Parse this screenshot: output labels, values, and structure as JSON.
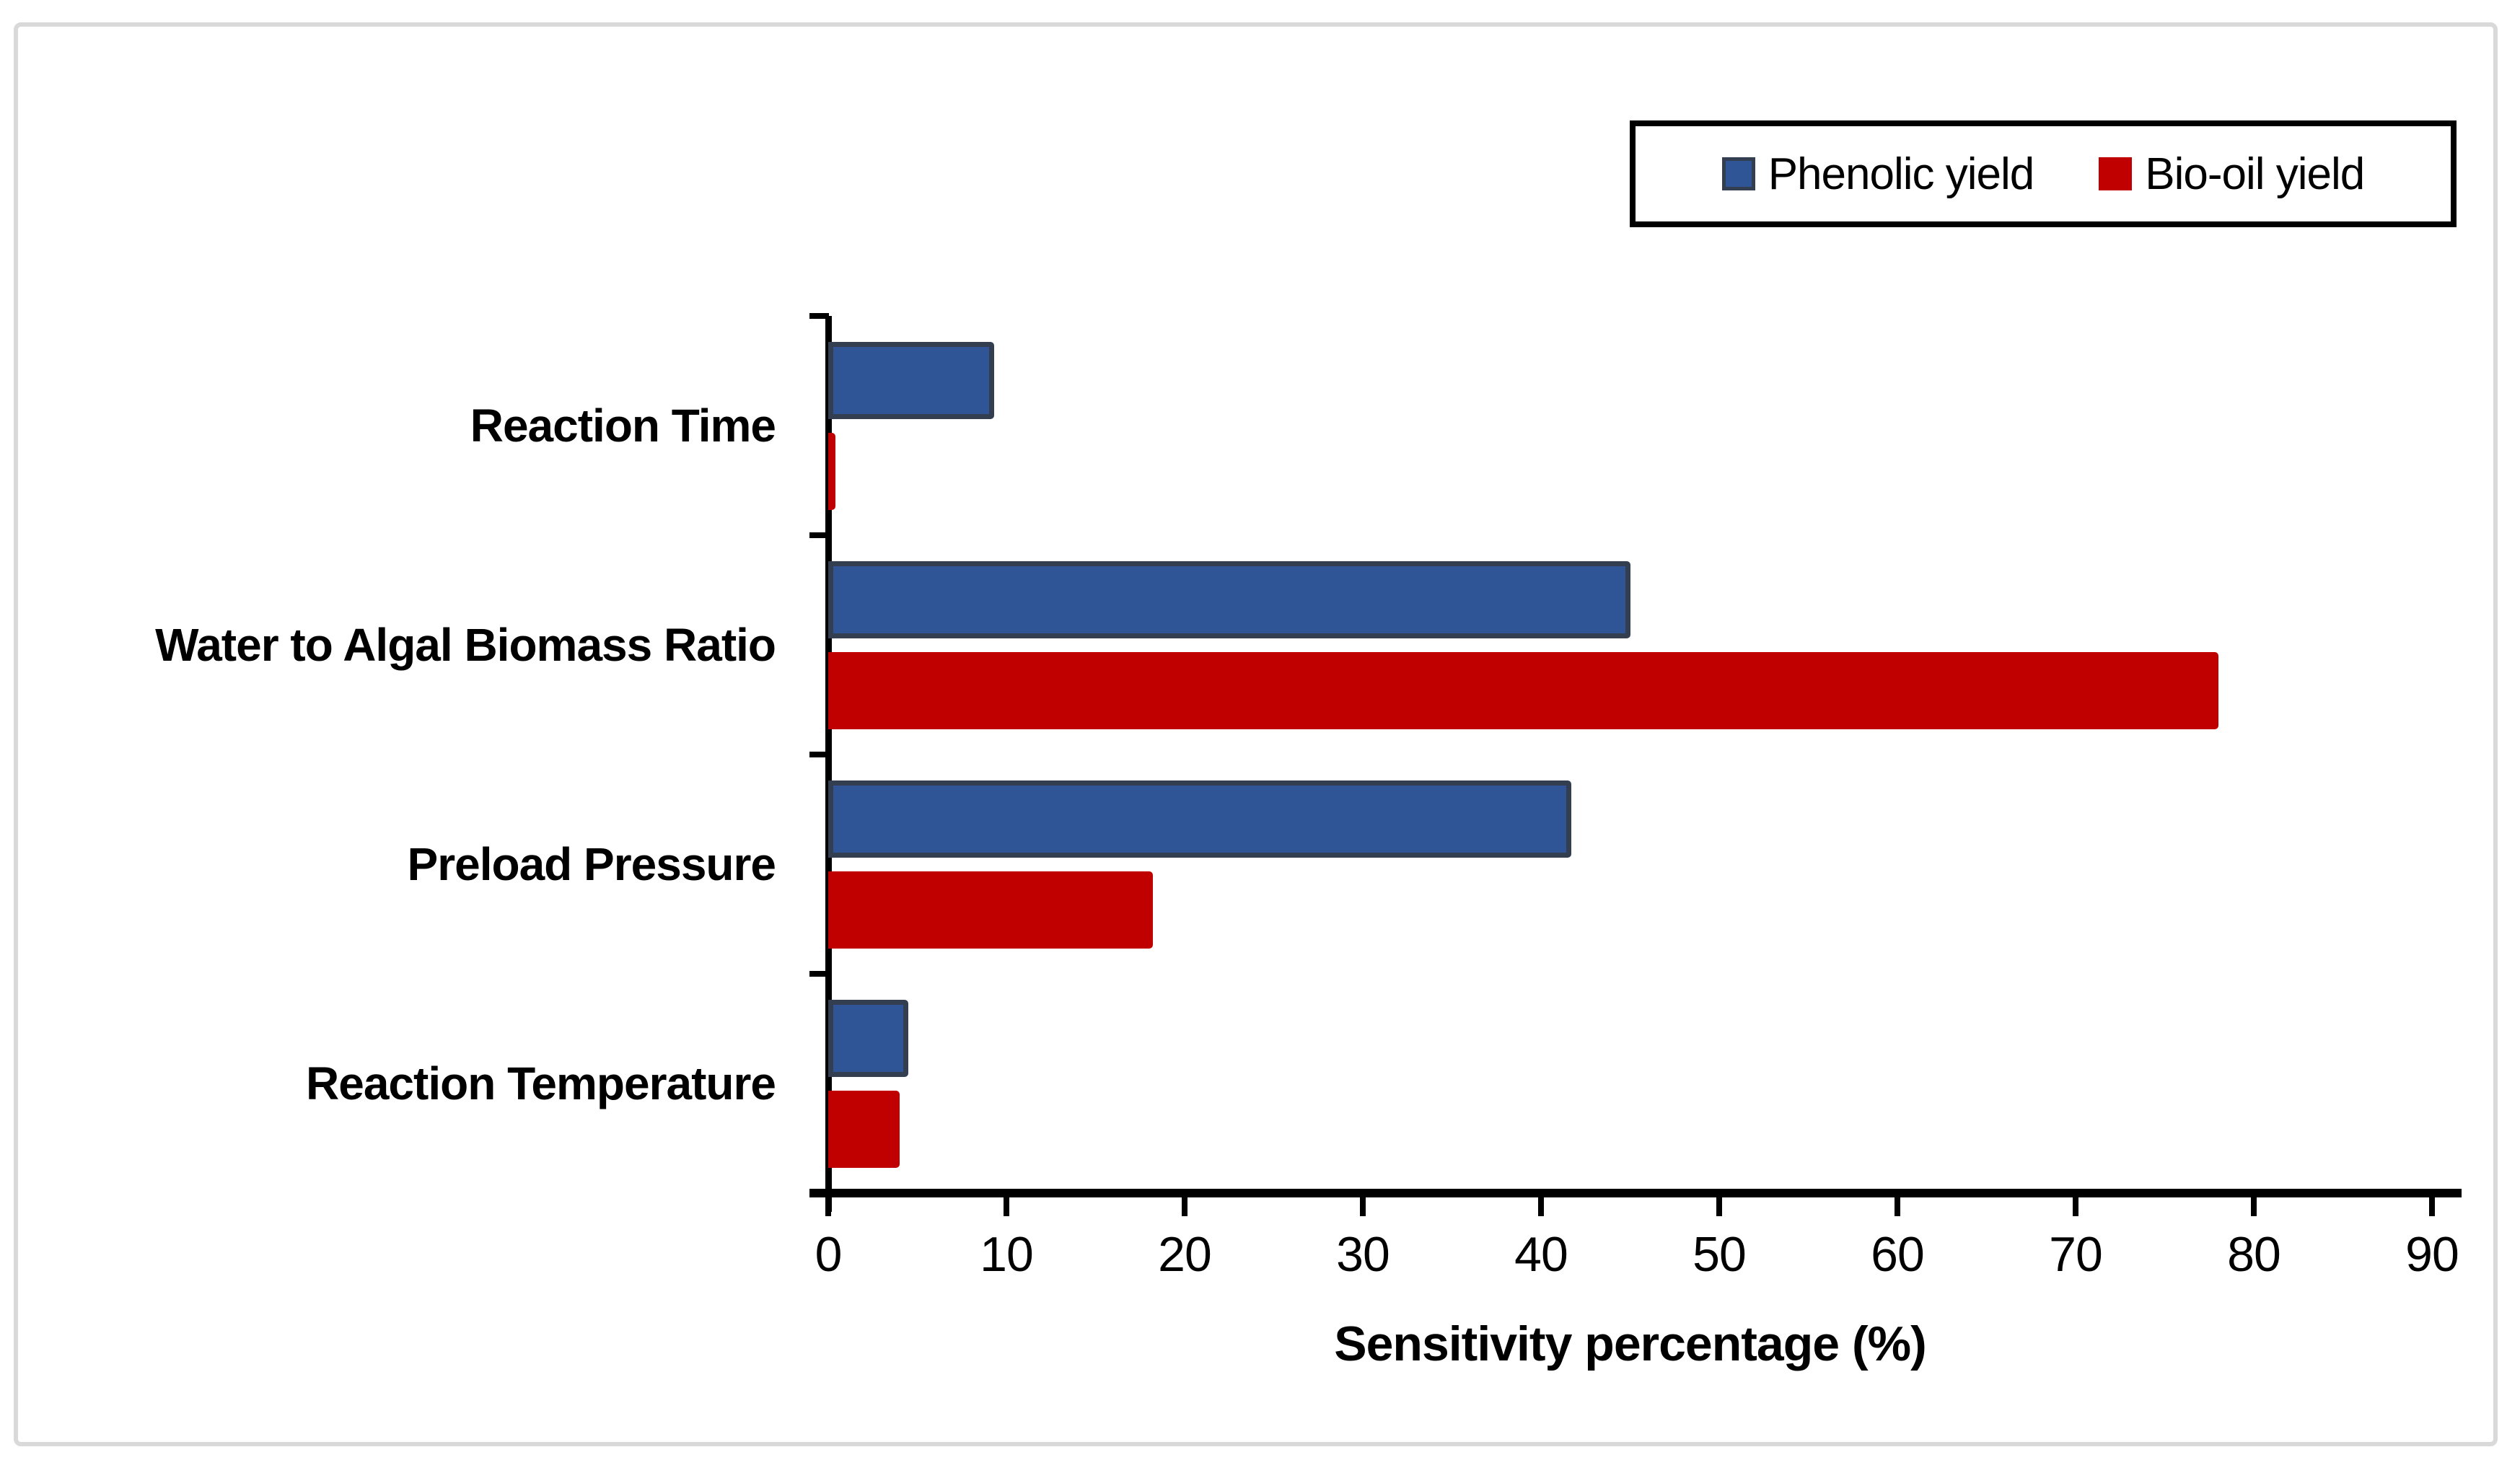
{
  "figure": {
    "background": "#FFFFFF",
    "frame_border_color": "#D9D9D9",
    "axis_color": "#000000"
  },
  "legend": {
    "position": "top-right",
    "border_color": "#000000",
    "items": [
      {
        "label": "Phenolic yield",
        "color": "#2F5597",
        "border_color": "#333F50"
      },
      {
        "label": "Bio-oil yield",
        "color": "#C00000",
        "border_color": "#C00000"
      }
    ]
  },
  "chart_data": {
    "type": "bar",
    "orientation": "horizontal",
    "title": "",
    "xlabel": "Sensitivity percentage (%)",
    "ylabel": "",
    "categories": [
      "Reaction Time",
      "Water to Algal Biomass Ratio",
      "Preload Pressure",
      "Reaction Temperature"
    ],
    "series": [
      {
        "name": "Phenolic yield",
        "color": "#2F5597",
        "border_color": "#333F50",
        "values": [
          9.3,
          45,
          41.7,
          4.5
        ]
      },
      {
        "name": "Bio-oil yield",
        "color": "#C00000",
        "border_color": "#C00000",
        "values": [
          0.4,
          78,
          18.2,
          4.0
        ]
      }
    ],
    "xlim": [
      0,
      90
    ],
    "x_ticks": [
      0,
      10,
      20,
      30,
      40,
      50,
      60,
      70,
      80,
      90
    ],
    "grid": false,
    "legend_position": "top-right"
  }
}
